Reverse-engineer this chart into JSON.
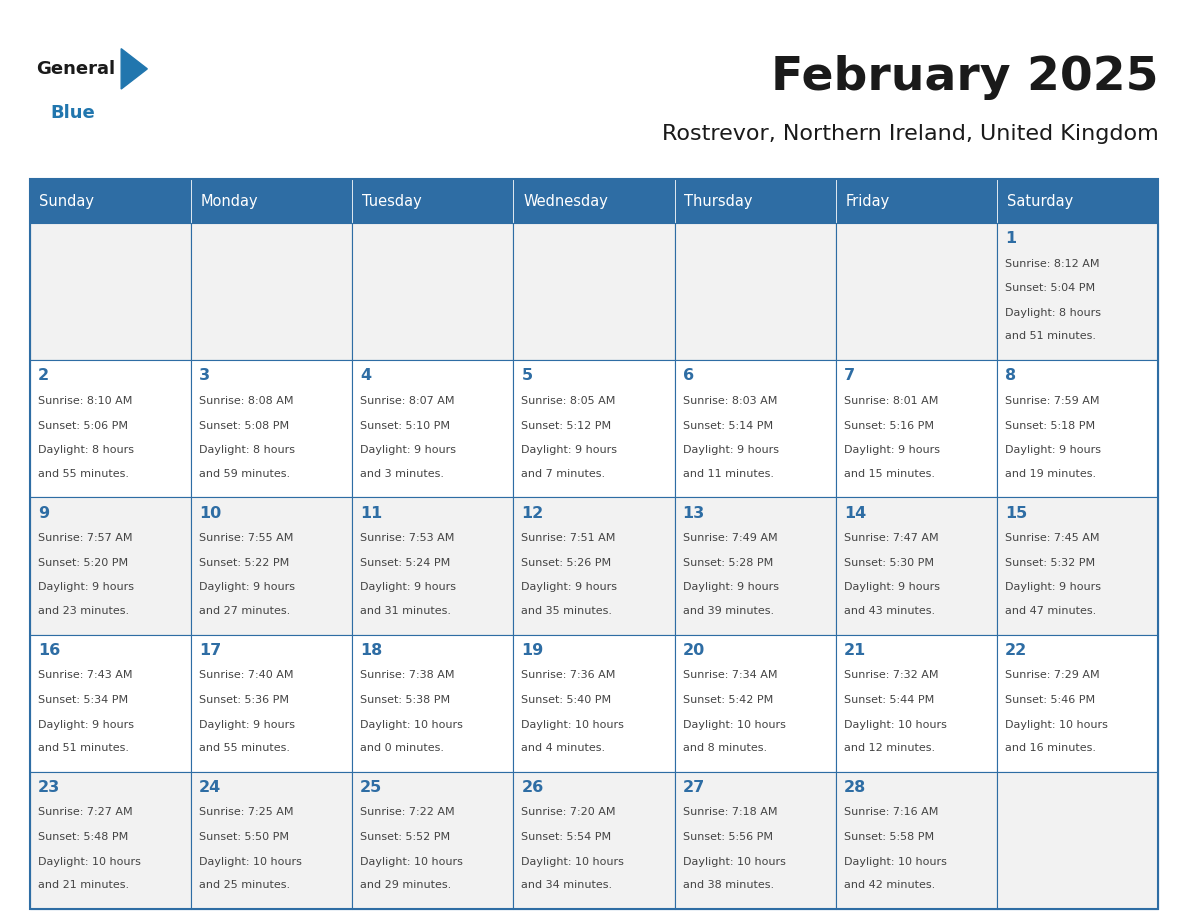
{
  "title": "February 2025",
  "subtitle": "Rostrevor, Northern Ireland, United Kingdom",
  "days_of_week": [
    "Sunday",
    "Monday",
    "Tuesday",
    "Wednesday",
    "Thursday",
    "Friday",
    "Saturday"
  ],
  "header_bg": "#2E6DA4",
  "header_text": "#FFFFFF",
  "cell_bg_light": "#F2F2F2",
  "cell_bg_white": "#FFFFFF",
  "cell_border": "#2E6DA4",
  "day_number_color": "#2E6DA4",
  "cell_text_color": "#444444",
  "title_color": "#1a1a1a",
  "subtitle_color": "#1a1a1a",
  "logo_general_color": "#1a1a1a",
  "logo_blue_color": "#2176AE",
  "weeks": [
    {
      "row": 0,
      "cells": [
        {
          "day": null,
          "col": 0
        },
        {
          "day": null,
          "col": 1
        },
        {
          "day": null,
          "col": 2
        },
        {
          "day": null,
          "col": 3
        },
        {
          "day": null,
          "col": 4
        },
        {
          "day": null,
          "col": 5
        },
        {
          "day": 1,
          "col": 6,
          "sunrise": "8:12 AM",
          "sunset": "5:04 PM",
          "daylight": "8 hours and 51 minutes."
        }
      ]
    },
    {
      "row": 1,
      "cells": [
        {
          "day": 2,
          "col": 0,
          "sunrise": "8:10 AM",
          "sunset": "5:06 PM",
          "daylight": "8 hours and 55 minutes."
        },
        {
          "day": 3,
          "col": 1,
          "sunrise": "8:08 AM",
          "sunset": "5:08 PM",
          "daylight": "8 hours and 59 minutes."
        },
        {
          "day": 4,
          "col": 2,
          "sunrise": "8:07 AM",
          "sunset": "5:10 PM",
          "daylight": "9 hours and 3 minutes."
        },
        {
          "day": 5,
          "col": 3,
          "sunrise": "8:05 AM",
          "sunset": "5:12 PM",
          "daylight": "9 hours and 7 minutes."
        },
        {
          "day": 6,
          "col": 4,
          "sunrise": "8:03 AM",
          "sunset": "5:14 PM",
          "daylight": "9 hours and 11 minutes."
        },
        {
          "day": 7,
          "col": 5,
          "sunrise": "8:01 AM",
          "sunset": "5:16 PM",
          "daylight": "9 hours and 15 minutes."
        },
        {
          "day": 8,
          "col": 6,
          "sunrise": "7:59 AM",
          "sunset": "5:18 PM",
          "daylight": "9 hours and 19 minutes."
        }
      ]
    },
    {
      "row": 2,
      "cells": [
        {
          "day": 9,
          "col": 0,
          "sunrise": "7:57 AM",
          "sunset": "5:20 PM",
          "daylight": "9 hours and 23 minutes."
        },
        {
          "day": 10,
          "col": 1,
          "sunrise": "7:55 AM",
          "sunset": "5:22 PM",
          "daylight": "9 hours and 27 minutes."
        },
        {
          "day": 11,
          "col": 2,
          "sunrise": "7:53 AM",
          "sunset": "5:24 PM",
          "daylight": "9 hours and 31 minutes."
        },
        {
          "day": 12,
          "col": 3,
          "sunrise": "7:51 AM",
          "sunset": "5:26 PM",
          "daylight": "9 hours and 35 minutes."
        },
        {
          "day": 13,
          "col": 4,
          "sunrise": "7:49 AM",
          "sunset": "5:28 PM",
          "daylight": "9 hours and 39 minutes."
        },
        {
          "day": 14,
          "col": 5,
          "sunrise": "7:47 AM",
          "sunset": "5:30 PM",
          "daylight": "9 hours and 43 minutes."
        },
        {
          "day": 15,
          "col": 6,
          "sunrise": "7:45 AM",
          "sunset": "5:32 PM",
          "daylight": "9 hours and 47 minutes."
        }
      ]
    },
    {
      "row": 3,
      "cells": [
        {
          "day": 16,
          "col": 0,
          "sunrise": "7:43 AM",
          "sunset": "5:34 PM",
          "daylight": "9 hours and 51 minutes."
        },
        {
          "day": 17,
          "col": 1,
          "sunrise": "7:40 AM",
          "sunset": "5:36 PM",
          "daylight": "9 hours and 55 minutes."
        },
        {
          "day": 18,
          "col": 2,
          "sunrise": "7:38 AM",
          "sunset": "5:38 PM",
          "daylight": "10 hours and 0 minutes."
        },
        {
          "day": 19,
          "col": 3,
          "sunrise": "7:36 AM",
          "sunset": "5:40 PM",
          "daylight": "10 hours and 4 minutes."
        },
        {
          "day": 20,
          "col": 4,
          "sunrise": "7:34 AM",
          "sunset": "5:42 PM",
          "daylight": "10 hours and 8 minutes."
        },
        {
          "day": 21,
          "col": 5,
          "sunrise": "7:32 AM",
          "sunset": "5:44 PM",
          "daylight": "10 hours and 12 minutes."
        },
        {
          "day": 22,
          "col": 6,
          "sunrise": "7:29 AM",
          "sunset": "5:46 PM",
          "daylight": "10 hours and 16 minutes."
        }
      ]
    },
    {
      "row": 4,
      "cells": [
        {
          "day": 23,
          "col": 0,
          "sunrise": "7:27 AM",
          "sunset": "5:48 PM",
          "daylight": "10 hours and 21 minutes."
        },
        {
          "day": 24,
          "col": 1,
          "sunrise": "7:25 AM",
          "sunset": "5:50 PM",
          "daylight": "10 hours and 25 minutes."
        },
        {
          "day": 25,
          "col": 2,
          "sunrise": "7:22 AM",
          "sunset": "5:52 PM",
          "daylight": "10 hours and 29 minutes."
        },
        {
          "day": 26,
          "col": 3,
          "sunrise": "7:20 AM",
          "sunset": "5:54 PM",
          "daylight": "10 hours and 34 minutes."
        },
        {
          "day": 27,
          "col": 4,
          "sunrise": "7:18 AM",
          "sunset": "5:56 PM",
          "daylight": "10 hours and 38 minutes."
        },
        {
          "day": 28,
          "col": 5,
          "sunrise": "7:16 AM",
          "sunset": "5:58 PM",
          "daylight": "10 hours and 42 minutes."
        },
        {
          "day": null,
          "col": 6
        }
      ]
    }
  ]
}
